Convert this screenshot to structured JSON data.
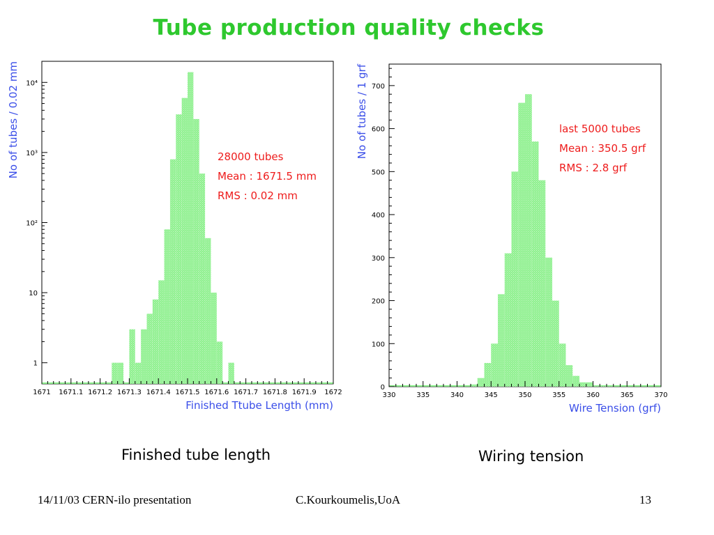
{
  "slide": {
    "title": "Tube production quality checks",
    "footer_left": "14/11/03 CERN-ilo presentation",
    "footer_center": "C.Kourkoumelis,UoA",
    "page_number": "13"
  },
  "colors": {
    "title": "#2ec82e",
    "bar_fill": "#8ef08e",
    "axis_label": "#3a4ee8",
    "stats_text": "#ee1c1c"
  },
  "chart_data": [
    {
      "type": "bar",
      "caption": "Finished tube length",
      "xlabel": "Finished Ttube Length (mm)",
      "ylabel": "No of tubes / 0.02 mm",
      "yscale": "log",
      "xlim": [
        1671,
        1672
      ],
      "ylim": [
        0.5,
        20000
      ],
      "bin_width": 0.02,
      "xticks": [
        "1671",
        "1671.1",
        "1671.2",
        "1671.3",
        "1671.4",
        "1671.5",
        "1671.6",
        "1671.7",
        "1671.8",
        "1671.9",
        "1672"
      ],
      "yticks": [
        {
          "value": 1,
          "label": "1"
        },
        {
          "value": 10,
          "label": "10"
        },
        {
          "value": 100,
          "label": "10²"
        },
        {
          "value": 1000,
          "label": "10³"
        },
        {
          "value": 10000,
          "label": "10⁴"
        }
      ],
      "bins": [
        {
          "x": 1671.24,
          "y": 1
        },
        {
          "x": 1671.26,
          "y": 1
        },
        {
          "x": 1671.3,
          "y": 3
        },
        {
          "x": 1671.32,
          "y": 1
        },
        {
          "x": 1671.34,
          "y": 3
        },
        {
          "x": 1671.36,
          "y": 5
        },
        {
          "x": 1671.38,
          "y": 8
        },
        {
          "x": 1671.4,
          "y": 15
        },
        {
          "x": 1671.42,
          "y": 80
        },
        {
          "x": 1671.44,
          "y": 800
        },
        {
          "x": 1671.46,
          "y": 3500
        },
        {
          "x": 1671.48,
          "y": 6000
        },
        {
          "x": 1671.5,
          "y": 14000
        },
        {
          "x": 1671.52,
          "y": 3000
        },
        {
          "x": 1671.54,
          "y": 500
        },
        {
          "x": 1671.56,
          "y": 60
        },
        {
          "x": 1671.58,
          "y": 10
        },
        {
          "x": 1671.6,
          "y": 2
        },
        {
          "x": 1671.64,
          "y": 1
        }
      ],
      "stats": [
        "28000 tubes",
        "Mean : 1671.5 mm",
        "RMS : 0.02 mm"
      ],
      "grid": false
    },
    {
      "type": "bar",
      "caption": "Wiring tension",
      "xlabel": "Wire Tension (grf)",
      "ylabel": "No of tubes / 1 grf",
      "yscale": "linear",
      "xlim": [
        330,
        370
      ],
      "ylim": [
        0,
        750
      ],
      "bin_width": 1,
      "xticks": [
        "330",
        "335",
        "340",
        "345",
        "350",
        "355",
        "360",
        "365",
        "370"
      ],
      "yticks": [
        {
          "value": 0,
          "label": "0"
        },
        {
          "value": 100,
          "label": "100"
        },
        {
          "value": 200,
          "label": "200"
        },
        {
          "value": 300,
          "label": "300"
        },
        {
          "value": 400,
          "label": "400"
        },
        {
          "value": 500,
          "label": "500"
        },
        {
          "value": 600,
          "label": "600"
        },
        {
          "value": 700,
          "label": "700"
        }
      ],
      "bins": [
        {
          "x": 342,
          "y": 5
        },
        {
          "x": 343,
          "y": 20
        },
        {
          "x": 344,
          "y": 55
        },
        {
          "x": 345,
          "y": 100
        },
        {
          "x": 346,
          "y": 215
        },
        {
          "x": 347,
          "y": 310
        },
        {
          "x": 348,
          "y": 500
        },
        {
          "x": 349,
          "y": 660
        },
        {
          "x": 350,
          "y": 680
        },
        {
          "x": 351,
          "y": 570
        },
        {
          "x": 352,
          "y": 480
        },
        {
          "x": 353,
          "y": 300
        },
        {
          "x": 354,
          "y": 200
        },
        {
          "x": 355,
          "y": 100
        },
        {
          "x": 356,
          "y": 50
        },
        {
          "x": 357,
          "y": 25
        },
        {
          "x": 358,
          "y": 10
        },
        {
          "x": 359,
          "y": 10
        },
        {
          "x": 360,
          "y": 3
        },
        {
          "x": 361,
          "y": 2
        },
        {
          "x": 362,
          "y": 1
        }
      ],
      "stats": [
        "last 5000 tubes",
        "Mean : 350.5 grf",
        "RMS : 2.8 grf"
      ],
      "grid": false
    }
  ]
}
